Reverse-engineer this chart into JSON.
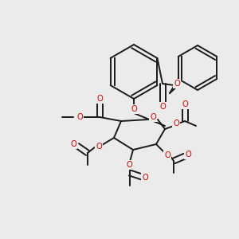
{
  "bg_color": "#ebebeb",
  "bond_color": "#1a1a1a",
  "oxygen_color": "#cc0000",
  "lw": 1.4,
  "fig_w": 3.0,
  "fig_h": 3.0,
  "dpi": 100,
  "xlim": [
    0,
    300
  ],
  "ylim": [
    0,
    300
  ]
}
